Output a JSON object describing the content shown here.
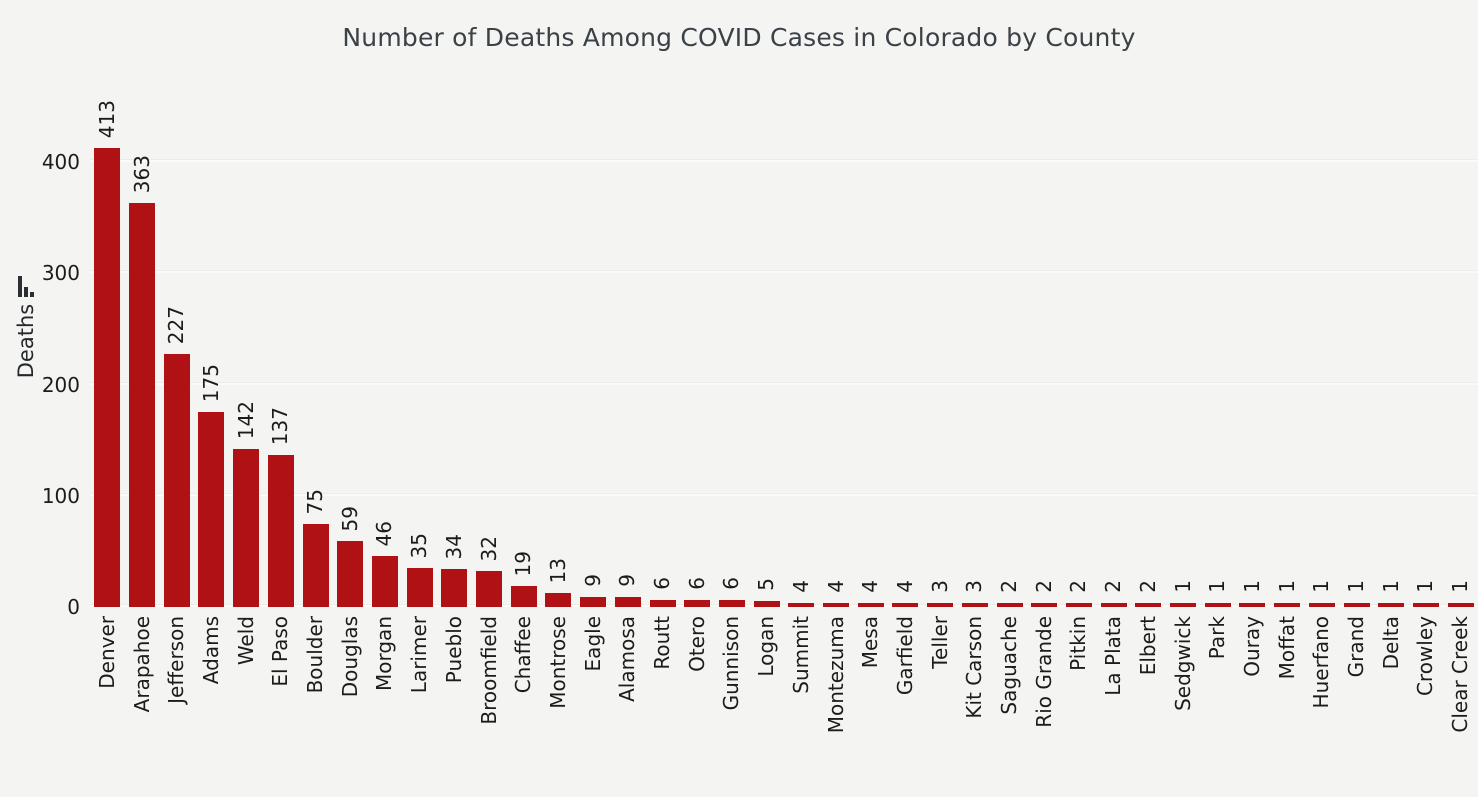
{
  "title": "Number of Deaths Among COVID Cases in Colorado by County",
  "colors": {
    "bar": "#AF1115",
    "background": "#F4F4F2",
    "gridline": "#FAFAF8",
    "title_text": "#3A4147",
    "axis_text": "#1C1C1C"
  },
  "y_axis": {
    "label": "Deaths",
    "icon": "bar-chart-icon",
    "ticks": [
      0,
      100,
      200,
      300,
      400
    ]
  },
  "chart_data": {
    "type": "bar",
    "title": "Number of Deaths Among COVID Cases in Colorado by County",
    "xlabel": "",
    "ylabel": "Deaths",
    "ylim": [
      0,
      469
    ],
    "grid": true,
    "legend": false,
    "bar_color": "#AF1115",
    "value_labels": "rotated 90deg above bars",
    "tick_label_rotation": 90,
    "categories": [
      "Denver",
      "Arapahoe",
      "Jefferson",
      "Adams",
      "Weld",
      "El Paso",
      "Boulder",
      "Douglas",
      "Morgan",
      "Larimer",
      "Pueblo",
      "Broomfield",
      "Chaffee",
      "Montrose",
      "Eagle",
      "Alamosa",
      "Routt",
      "Otero",
      "Gunnison",
      "Logan",
      "Summit",
      "Montezuma",
      "Mesa",
      "Garfield",
      "Teller",
      "Kit Carson",
      "Saguache",
      "Rio Grande",
      "Pitkin",
      "La Plata",
      "Elbert",
      "Sedgwick",
      "Park",
      "Ouray",
      "Moffat",
      "Huerfano",
      "Grand",
      "Delta",
      "Crowley",
      "Clear Creek"
    ],
    "values": [
      413,
      363,
      227,
      175,
      142,
      137,
      75,
      59,
      46,
      35,
      34,
      32,
      19,
      13,
      9,
      9,
      6,
      6,
      6,
      5,
      4,
      4,
      4,
      4,
      3,
      3,
      2,
      2,
      2,
      2,
      2,
      1,
      1,
      1,
      1,
      1,
      1,
      1,
      1,
      1
    ]
  }
}
